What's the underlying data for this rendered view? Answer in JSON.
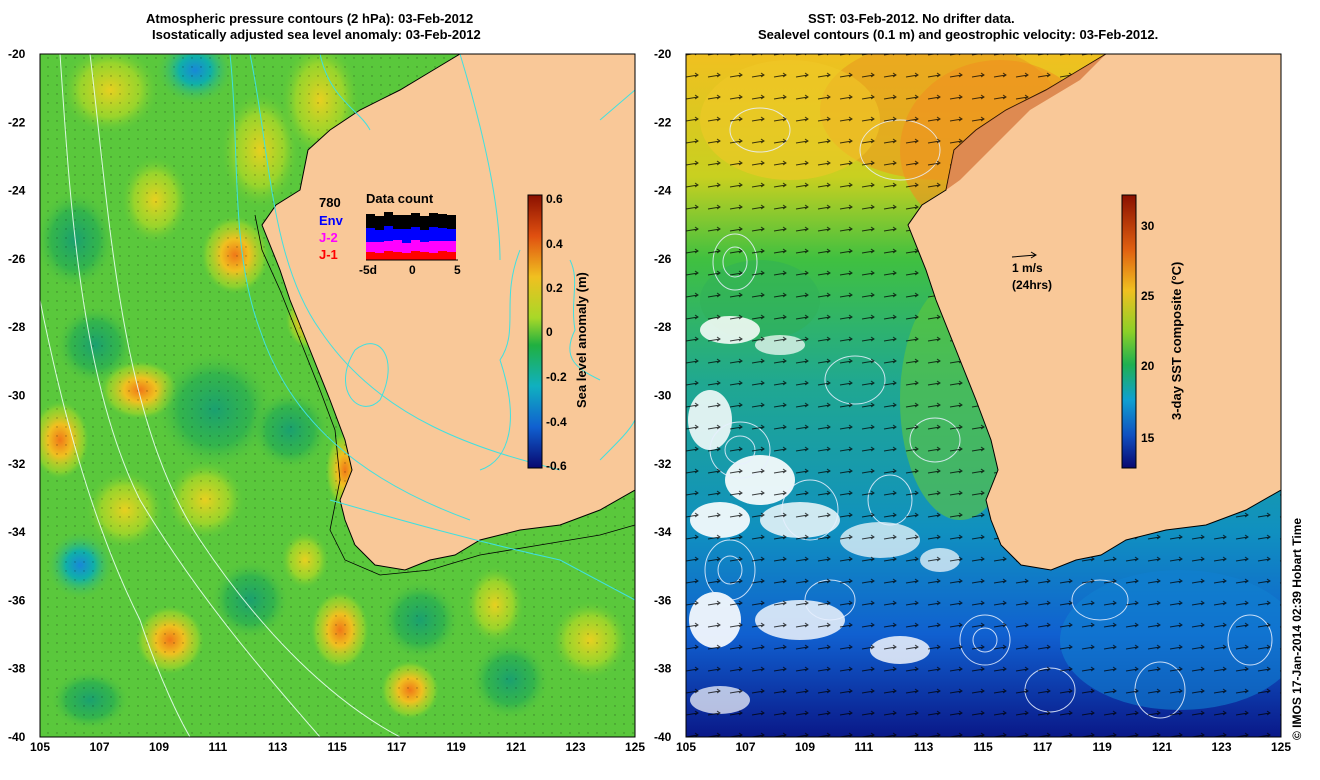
{
  "left_panel": {
    "title_line1": "Atmospheric pressure contours (2 hPa): 03-Feb-2012",
    "title_line2": "Isostatically adjusted sea level anomaly: 03-Feb-2012",
    "colorbar_label": "Sea level anomaly (m)",
    "colorbar_ticks": [
      "0.6",
      "0.4",
      "0.2",
      "0",
      "-0.2",
      "-0.4",
      "-0.6"
    ],
    "data_count": {
      "title": "Data count",
      "series": [
        "Env",
        "J-2",
        "J-1"
      ],
      "overlay_text": "780",
      "axis_labels": [
        "-5d",
        "0",
        "5"
      ],
      "colors": {
        "Env": "#0000ff",
        "J-2": "#ff00ff",
        "J-1": "#ff0000"
      }
    }
  },
  "right_panel": {
    "title_line1": "SST: 03-Feb-2012. No drifter data.",
    "title_line2": "Sealevel contours (0.1 m) and geostrophic velocity: 03-Feb-2012.",
    "colorbar_label": "3-day SST composite (°C)",
    "colorbar_ticks": [
      "30",
      "25",
      "20",
      "15"
    ],
    "velocity_scale": {
      "label": "1 m/s",
      "sub_label": "(24hrs)"
    }
  },
  "lat_ticks": [
    "-20",
    "-22",
    "-24",
    "-26",
    "-28",
    "-30",
    "-32",
    "-34",
    "-36",
    "-38",
    "-40"
  ],
  "lon_ticks": [
    "105",
    "107",
    "109",
    "111",
    "113",
    "115",
    "117",
    "119",
    "121",
    "123",
    "125"
  ],
  "credit": "© IMOS 17-Jan-2014 02:39 Hobart Time",
  "colors": {
    "land": "#f9c898",
    "ocean_sla_base": "#5ac83c",
    "sst_warm": "#e8a020",
    "sst_cold": "#1040c0",
    "contour_cyan": "#40e0e0"
  }
}
